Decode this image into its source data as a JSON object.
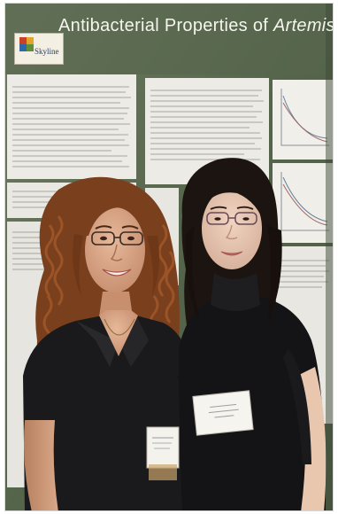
{
  "poster": {
    "title_main": "Antibacterial Properties of ",
    "title_italic": "Artemisia",
    "logo_word": "Skyline"
  },
  "colors": {
    "poster_background": "#5d6d52",
    "left_shirt": "#1a1a1c",
    "right_sweater": "#141416",
    "hair_left": "#7a3f1c",
    "hair_right": "#1c1410"
  }
}
